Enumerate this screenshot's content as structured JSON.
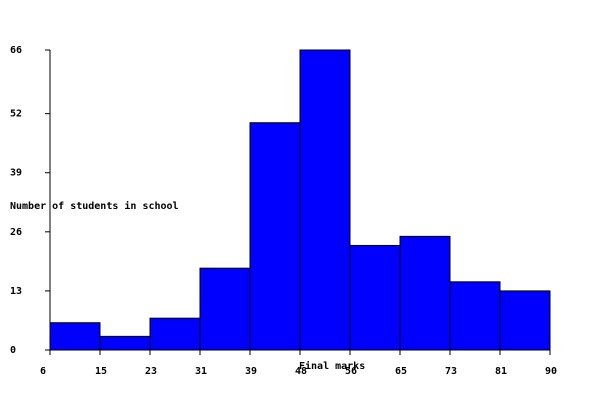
{
  "chart_data": {
    "type": "bar",
    "subtype": "histogram",
    "title": "",
    "xlabel": "Final marks",
    "ylabel": "Number of students in  school",
    "bin_edges": [
      6,
      15,
      23,
      31,
      39,
      48,
      56,
      65,
      73,
      81,
      90
    ],
    "x_tick_labels": [
      "6",
      "15",
      "23",
      "31",
      "39",
      "48",
      "56",
      "65",
      "73",
      "81",
      "90"
    ],
    "values": [
      6,
      3,
      7,
      18,
      50,
      66,
      23,
      25,
      15,
      13
    ],
    "ylim": [
      0,
      66
    ],
    "y_ticks": [
      0,
      13,
      26,
      39,
      52,
      66
    ],
    "y_tick_labels": [
      "0",
      "13",
      "26",
      "39",
      "52",
      "66"
    ],
    "grid": false,
    "bar_color": "#0000ff",
    "edge_color": "#000000"
  }
}
